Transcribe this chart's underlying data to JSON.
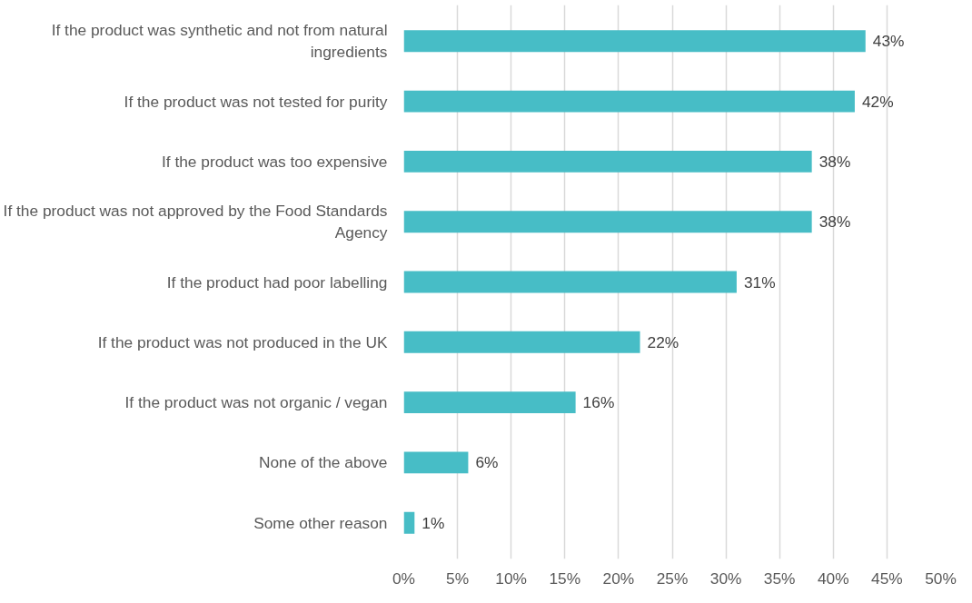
{
  "chart_data": {
    "type": "bar",
    "orientation": "horizontal",
    "categories": [
      "If the product was synthetic and not from natural ingredients",
      "If the product was not tested for purity",
      "If the product was too expensive",
      "If the product was not approved by the Food Standards Agency",
      "If the product had poor labelling",
      "If the product was not produced in the UK",
      "If the product was not organic / vegan",
      "None of the above",
      "Some other reason"
    ],
    "values": [
      43,
      42,
      38,
      38,
      31,
      22,
      16,
      6,
      1
    ],
    "color": "#47bdc6",
    "value_labels": [
      "43%",
      "42%",
      "38%",
      "38%",
      "31%",
      "22%",
      "16%",
      "6%",
      "1%"
    ],
    "xlim": [
      0,
      50
    ],
    "xticks": [
      {
        "value": 0,
        "label": "0%"
      },
      {
        "value": 5,
        "label": "5%"
      },
      {
        "value": 10,
        "label": "10%"
      },
      {
        "value": 15,
        "label": "15%"
      },
      {
        "value": 20,
        "label": "20%"
      },
      {
        "value": 25,
        "label": "25%"
      },
      {
        "value": 30,
        "label": "30%"
      },
      {
        "value": 35,
        "label": "35%"
      },
      {
        "value": 40,
        "label": "40%"
      },
      {
        "value": 45,
        "label": "45%"
      },
      {
        "value": 50,
        "label": "50%"
      }
    ],
    "grid": "x"
  }
}
